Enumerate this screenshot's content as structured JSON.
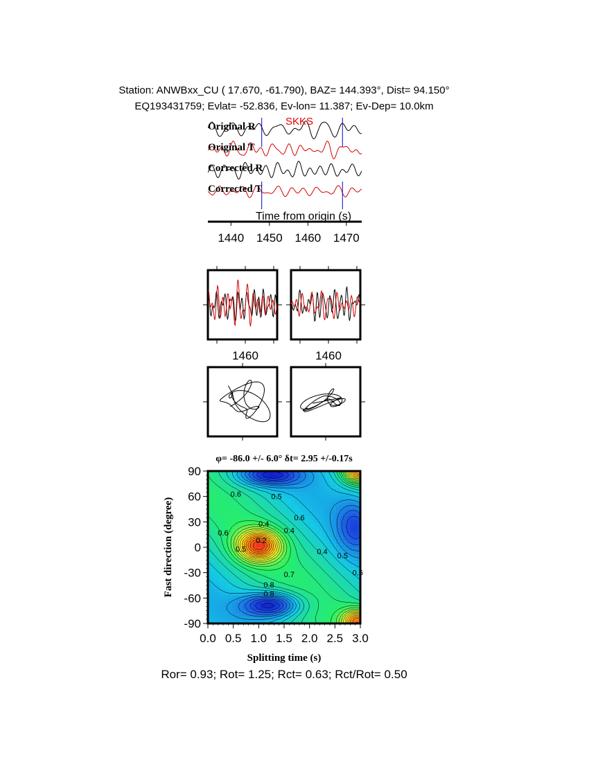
{
  "header": {
    "line1": "Station: ANWBxx_CU (  17.670,  -61.790), BAZ=  144.393°, Dist=   94.150°",
    "line2": "EQ193431759; Evlat= -52.836, Ev-lon=  11.387; Ev-Dep= 10.0km"
  },
  "footer": "Ror= 0.93; Rot= 1.25; Rct= 0.63; Rct/Rot= 0.50",
  "colors": {
    "radial": "#000000",
    "transverse": "#d40000",
    "phase": "#e00000",
    "window": "#0000cc"
  },
  "chart_data": [
    {
      "type": "line",
      "panel": "seismograms",
      "phase_label": "SKKS",
      "xlabel": "Time from origin (s)",
      "x_ticks": [
        "1440",
        "1450",
        "1460",
        "1470"
      ],
      "xlim": [
        1434,
        1474
      ],
      "window_markers": [
        1448,
        1469
      ],
      "series": [
        {
          "name": "Original R",
          "color": "#000000"
        },
        {
          "name": "Original T",
          "color": "#d40000"
        },
        {
          "name": "Corrected R",
          "color": "#000000"
        },
        {
          "name": "Corrected T",
          "color": "#d40000"
        }
      ]
    },
    {
      "type": "line",
      "panel": "waveform-windows",
      "x_ticks": [
        "1460",
        "1460"
      ]
    },
    {
      "type": "line",
      "panel": "particle-motion"
    },
    {
      "type": "heatmap",
      "panel": "energy-grid",
      "title": "φ= -86.0 +/- 6.0° δt= 2.95 +/-0.17s",
      "xlabel": "Splitting time (s)",
      "ylabel": "Fast direction (degree)",
      "xlim": [
        0,
        3
      ],
      "ylim": [
        -90,
        90
      ],
      "x_ticks": [
        "0.0",
        "0.5",
        "1.0",
        "1.5",
        "2.0",
        "2.5",
        "3.0"
      ],
      "y_ticks": [
        "90",
        "60",
        "30",
        "0",
        "-30",
        "-60",
        "-90"
      ],
      "contour_labels": [
        "0.6",
        "0.5",
        "0.4",
        "0.6",
        "0.4",
        "0.2",
        "0.5",
        "0.4",
        "0.6",
        "0.8",
        "0.5",
        "0.6",
        "0.7",
        "0.8"
      ]
    }
  ]
}
